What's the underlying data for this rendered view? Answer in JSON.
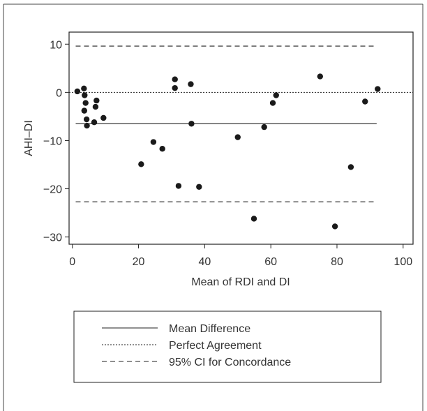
{
  "chart_data": {
    "type": "scatter",
    "title": "",
    "xlabel": "Mean of RDI and DI",
    "ylabel": "AHI–DI",
    "xlim": [
      -1,
      103
    ],
    "ylim": [
      -31.5,
      12.5
    ],
    "xticks": [
      0,
      20,
      40,
      60,
      80,
      100
    ],
    "yticks": [
      10,
      0,
      -10,
      -20,
      -30
    ],
    "tick_labels": {
      "x": [
        "0",
        "20",
        "40",
        "60",
        "80",
        "100"
      ],
      "y": [
        "10",
        "0",
        "−10",
        "−20",
        "−30"
      ]
    },
    "grid": false,
    "legend_position": "below",
    "series": [
      {
        "kind": "points",
        "color": "#1a1a1a",
        "points": [
          {
            "x": 1.5,
            "y": 0.2
          },
          {
            "x": 3.5,
            "y": 0.8
          },
          {
            "x": 3.7,
            "y": -0.6
          },
          {
            "x": 4.0,
            "y": -2.2
          },
          {
            "x": 3.6,
            "y": -3.8
          },
          {
            "x": 4.3,
            "y": -5.6
          },
          {
            "x": 4.4,
            "y": -6.9
          },
          {
            "x": 7.3,
            "y": -1.7
          },
          {
            "x": 7.0,
            "y": -3.0
          },
          {
            "x": 6.6,
            "y": -6.2
          },
          {
            "x": 9.4,
            "y": -5.3
          },
          {
            "x": 20.8,
            "y": -14.9
          },
          {
            "x": 24.5,
            "y": -10.3
          },
          {
            "x": 27.2,
            "y": -11.7
          },
          {
            "x": 31.0,
            "y": 2.7
          },
          {
            "x": 31.0,
            "y": 0.9
          },
          {
            "x": 32.1,
            "y": -19.4
          },
          {
            "x": 35.8,
            "y": 1.7
          },
          {
            "x": 36.0,
            "y": -6.5
          },
          {
            "x": 38.3,
            "y": -19.6
          },
          {
            "x": 50.0,
            "y": -9.3
          },
          {
            "x": 54.9,
            "y": -26.2
          },
          {
            "x": 58.0,
            "y": -7.2
          },
          {
            "x": 60.6,
            "y": -2.2
          },
          {
            "x": 61.6,
            "y": -0.6
          },
          {
            "x": 74.9,
            "y": 3.3
          },
          {
            "x": 79.4,
            "y": -27.8
          },
          {
            "x": 84.2,
            "y": -15.5
          },
          {
            "x": 88.5,
            "y": -1.9
          },
          {
            "x": 92.3,
            "y": 0.7
          }
        ]
      }
    ],
    "reference_lines": [
      {
        "name": "Mean Difference",
        "y": -6.5,
        "style": "solid",
        "xrange": [
          1,
          92
        ]
      },
      {
        "name": "Perfect Agreement",
        "y": 0,
        "style": "dotted",
        "xrange": [
          -1,
          103
        ]
      },
      {
        "name": "95% CI for Concordance",
        "y": 9.6,
        "style": "dashed",
        "xrange": [
          1,
          92
        ]
      },
      {
        "name": "95% CI for Concordance",
        "y": -22.7,
        "style": "dashed",
        "xrange": [
          1,
          92
        ]
      }
    ],
    "legend": [
      {
        "label": "Mean Difference",
        "style": "solid"
      },
      {
        "label": "Perfect Agreement",
        "style": "dotted"
      },
      {
        "label": "95% CI for Concordance",
        "style": "dashed"
      }
    ]
  }
}
